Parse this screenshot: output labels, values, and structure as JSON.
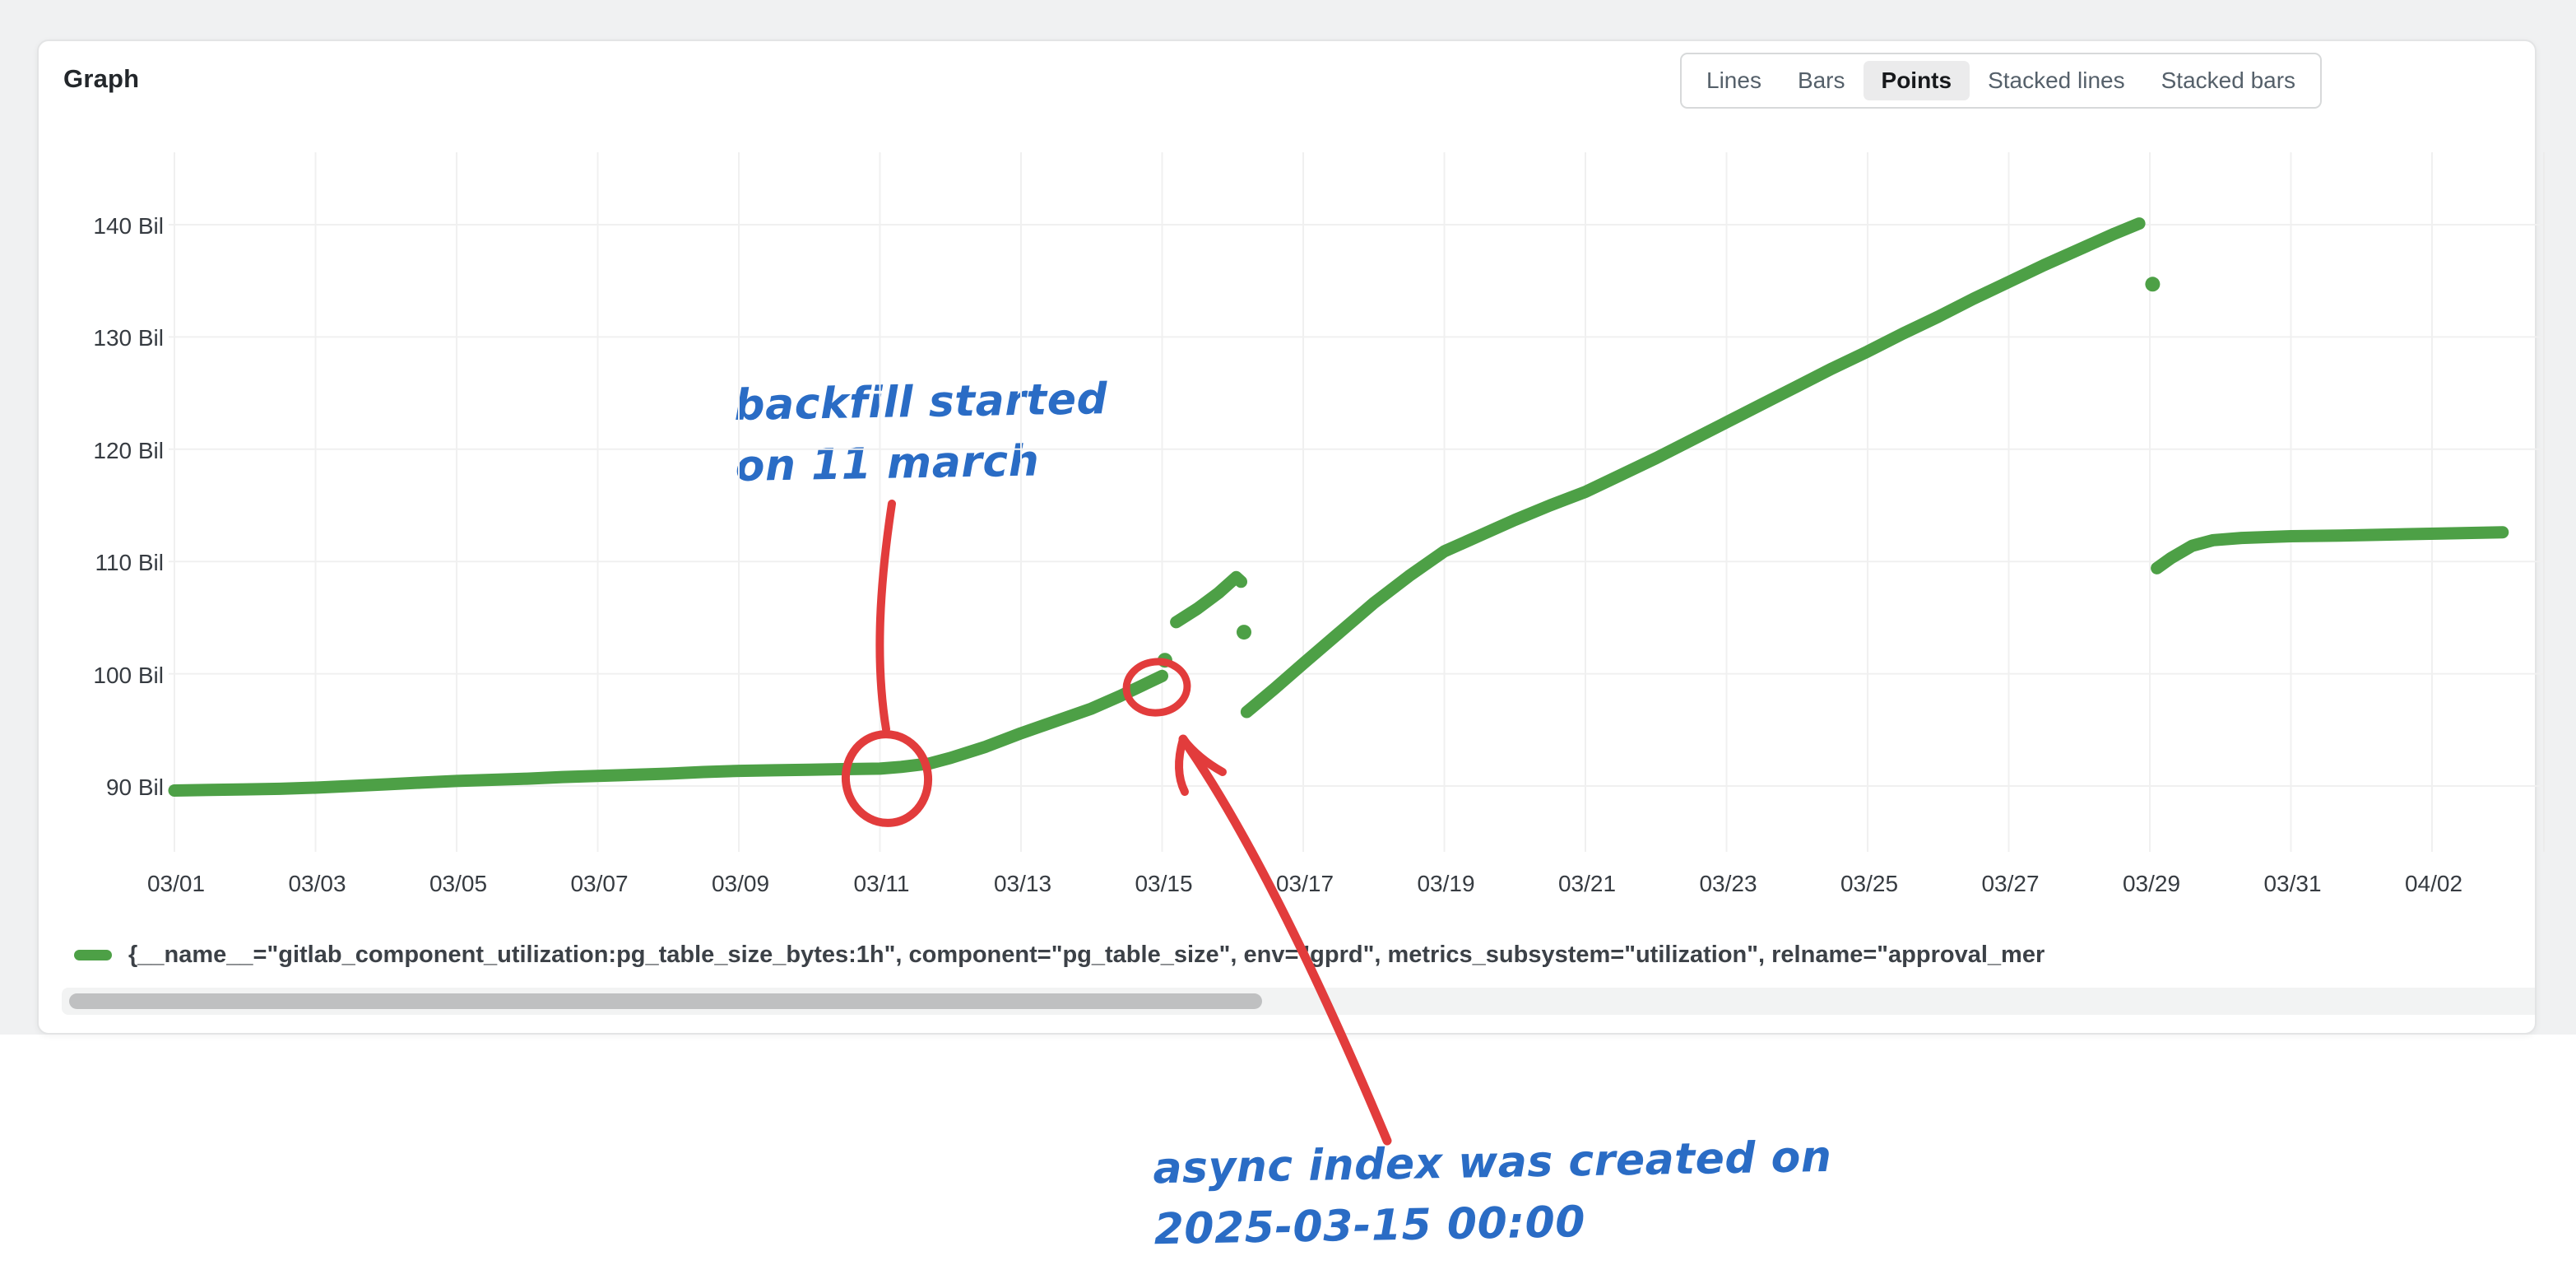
{
  "panel": {
    "title": "Graph"
  },
  "toolbar": {
    "modes": [
      {
        "label": "Lines"
      },
      {
        "label": "Bars"
      },
      {
        "label": "Points"
      },
      {
        "label": "Stacked lines"
      },
      {
        "label": "Stacked bars"
      }
    ],
    "active": "Points"
  },
  "legend": {
    "text": "{__name__=\"gitlab_component_utilization:pg_table_size_bytes:1h\", component=\"pg_table_size\", env=\"gprd\", metrics_subsystem=\"utilization\", relname=\"approval_mer"
  },
  "annotations": {
    "backfill": {
      "line1": "backfill started",
      "line2": "on 11 march"
    },
    "async_index": {
      "line1": "async index was created on",
      "line2": "2025-03-15 00:00"
    }
  },
  "colors": {
    "series_green": "#4da046",
    "annotation_red": "#e23c3c",
    "annotation_blue": "#2a6cc5",
    "grid": "#f0f0f0"
  },
  "chart_data": {
    "type": "scatter",
    "title": "Graph",
    "point_style": "dense points (rendered as thick dotted line)",
    "x_axis": {
      "unit": "date (2025, MM/DD)",
      "tick_labels": [
        "03/01",
        "03/03",
        "03/05",
        "03/07",
        "03/09",
        "03/11",
        "03/13",
        "03/15",
        "03/17",
        "03/19",
        "03/21",
        "03/23",
        "03/25",
        "03/27",
        "03/29",
        "03/31",
        "04/02"
      ],
      "note": "day index used in data: March day-of-month; 32 = 04/01, 34 = 04/03"
    },
    "y_axis": {
      "unit": "bytes (billions)",
      "tick_labels": [
        "140 Bil",
        "130 Bil",
        "120 Bil",
        "110 Bil",
        "100 Bil",
        "90 Bil"
      ],
      "range_bil": [
        86,
        146
      ],
      "grid": true
    },
    "series": [
      {
        "name": "{__name__=\"gitlab_component_utilization:pg_table_size_bytes:1h\", component=\"pg_table_size\", env=\"gprd\", metrics_subsystem=\"utilization\", relname=\"approval_mer",
        "color": "#4da046",
        "segments": [
          [
            [
              1,
              89.6
            ],
            [
              1.5,
              89.65
            ],
            [
              2,
              89.7
            ],
            [
              2.5,
              89.75
            ],
            [
              3,
              89.85
            ],
            [
              3.5,
              90.0
            ],
            [
              4,
              90.15
            ],
            [
              4.5,
              90.3
            ],
            [
              5,
              90.45
            ],
            [
              5.5,
              90.55
            ],
            [
              6,
              90.65
            ],
            [
              6.5,
              90.8
            ],
            [
              7,
              90.9
            ],
            [
              7.5,
              91.0
            ],
            [
              8,
              91.1
            ],
            [
              8.5,
              91.25
            ],
            [
              9,
              91.35
            ],
            [
              9.5,
              91.4
            ],
            [
              10,
              91.45
            ],
            [
              10.5,
              91.5
            ],
            [
              11,
              91.55
            ],
            [
              11.3,
              91.7
            ],
            [
              11.7,
              92.0
            ],
            [
              12,
              92.5
            ],
            [
              12.5,
              93.5
            ],
            [
              13,
              94.7
            ],
            [
              13.5,
              95.8
            ],
            [
              14,
              96.9
            ],
            [
              14.4,
              98.0
            ],
            [
              14.7,
              98.9
            ],
            [
              15,
              99.8
            ]
          ],
          [
            [
              15.2,
              104.6
            ],
            [
              15.5,
              105.8
            ],
            [
              15.8,
              107.2
            ],
            [
              16.05,
              108.6
            ],
            [
              16.12,
              108.2
            ]
          ],
          [
            [
              16.2,
              96.6
            ],
            [
              16.6,
              98.7
            ],
            [
              17,
              100.9
            ],
            [
              17.5,
              103.6
            ],
            [
              18,
              106.3
            ],
            [
              18.5,
              108.7
            ],
            [
              19,
              110.9
            ],
            [
              19.5,
              112.3
            ],
            [
              20,
              113.7
            ],
            [
              20.5,
              115.0
            ],
            [
              21,
              116.2
            ],
            [
              21.5,
              117.7
            ],
            [
              22,
              119.2
            ],
            [
              22.5,
              120.8
            ],
            [
              23,
              122.4
            ],
            [
              23.5,
              124.0
            ],
            [
              24,
              125.6
            ],
            [
              24.5,
              127.2
            ],
            [
              25,
              128.7
            ],
            [
              25.5,
              130.3
            ],
            [
              26,
              131.8
            ],
            [
              26.5,
              133.4
            ],
            [
              27,
              134.9
            ],
            [
              27.5,
              136.4
            ],
            [
              28,
              137.8
            ],
            [
              28.5,
              139.2
            ],
            [
              28.85,
              140.1
            ]
          ],
          [
            [
              29.1,
              109.4
            ],
            [
              29.3,
              110.3
            ],
            [
              29.6,
              111.4
            ],
            [
              29.9,
              111.9
            ],
            [
              30.3,
              112.1
            ],
            [
              31,
              112.25
            ],
            [
              31.7,
              112.3
            ],
            [
              32.4,
              112.4
            ],
            [
              33.2,
              112.5
            ],
            [
              34,
              112.6
            ]
          ]
        ],
        "isolated_points": [
          [
            15.04,
            101.2
          ],
          [
            16.16,
            103.7
          ],
          [
            29.04,
            134.7
          ]
        ]
      }
    ],
    "annotated_events": [
      {
        "label": "backfill started on 11 march",
        "x_day": 11,
        "y_bil": 91.5
      },
      {
        "label": "async index was created on 2025-03-15 00:00",
        "x_day": 15,
        "y_bil": 99.8
      }
    ]
  }
}
